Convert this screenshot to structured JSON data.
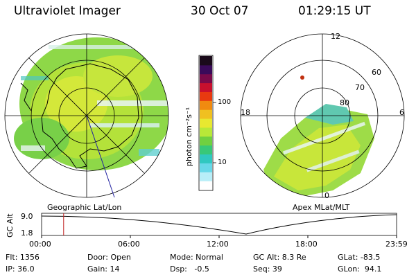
{
  "header": {
    "title": "Ultraviolet Imager",
    "date": "30 Oct 07",
    "time": "01:29:15 UT"
  },
  "left_panel": {
    "caption": "Geographic Lat/Lon"
  },
  "right_panel": {
    "caption": "Apex MLat/MLT",
    "mlt_labels": {
      "top": "12",
      "left": "18",
      "right": "6",
      "bottom": "0"
    },
    "lat_labels": [
      "60",
      "70",
      "80"
    ]
  },
  "colorbar": {
    "ticks": [
      "100",
      "10"
    ],
    "unit": "photon cm⁻²s⁻¹",
    "colors": [
      "#1a0a1a",
      "#3a0a5a",
      "#7a0a4a",
      "#c8102e",
      "#e83a10",
      "#f08a10",
      "#f0c020",
      "#e8e830",
      "#b8e838",
      "#70d040",
      "#38c878",
      "#30c8c0",
      "#68d8e8",
      "#b8eef8",
      "#ffffff"
    ]
  },
  "timeline": {
    "ylabel": "GC Alt",
    "yticks": [
      "9.0",
      "1.8"
    ],
    "xticks": [
      "00:00",
      "06:00",
      "12:00",
      "18:00",
      "23:59"
    ],
    "marker_hour": 1.49
  },
  "info": {
    "row1": [
      "Flt: 1356",
      "Door: Open",
      "Mode: Normal",
      "GC Alt: 8.3 Re",
      "GLat: -83.5"
    ],
    "row2": [
      "IP: 36.0",
      "Gain: 14",
      "Dsp:   -0.5",
      "Seq: 39",
      "GLon:  94.1"
    ]
  }
}
